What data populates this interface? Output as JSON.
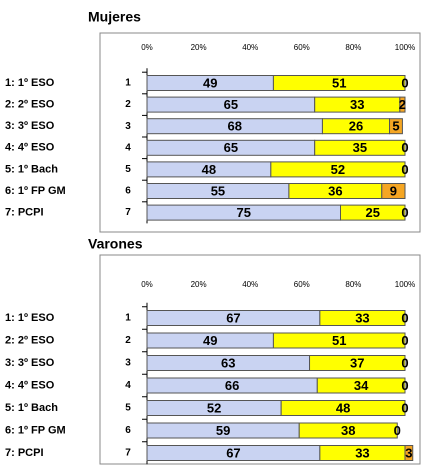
{
  "chart_data": [
    {
      "type": "bar",
      "orientation": "horizontal",
      "stacked": true,
      "title": "Mujeres",
      "categories": [
        "1",
        "2",
        "3",
        "4",
        "5",
        "6",
        "7"
      ],
      "side_labels": [
        "1: 1º ESO",
        "2: 2º ESO",
        "3: 3º ESO",
        "4: 4º ESO",
        "5: 1º Bach",
        "6: 1º FP GM",
        "7: PCPI"
      ],
      "series": [
        {
          "color": "#c9d3f2",
          "values": [
            49,
            65,
            68,
            65,
            48,
            55,
            75
          ]
        },
        {
          "color": "#ffff00",
          "values": [
            51,
            33,
            26,
            35,
            52,
            36,
            25
          ]
        },
        {
          "color": "#f5a623",
          "values": [
            0,
            2,
            5,
            0,
            0,
            9,
            0
          ]
        }
      ],
      "xlim": [
        0,
        100
      ],
      "xticks": [
        {
          "value": 0,
          "label": "0%"
        },
        {
          "value": 20,
          "label": "20%"
        },
        {
          "value": 40,
          "label": "40%"
        },
        {
          "value": 60,
          "label": "60%"
        },
        {
          "value": 80,
          "label": "80%"
        },
        {
          "value": 100,
          "label": "100%"
        }
      ]
    },
    {
      "type": "bar",
      "orientation": "horizontal",
      "stacked": true,
      "title": "Varones",
      "categories": [
        "1",
        "2",
        "3",
        "4",
        "5",
        "6",
        "7"
      ],
      "side_labels": [
        "1: 1º ESO",
        "2: 2º ESO",
        "3: 3º ESO",
        "4: 4º ESO",
        "5: 1º Bach",
        "6: 1º FP GM",
        "7: PCPI"
      ],
      "series": [
        {
          "color": "#c9d3f2",
          "values": [
            67,
            49,
            63,
            66,
            52,
            59,
            67
          ]
        },
        {
          "color": "#ffff00",
          "values": [
            33,
            51,
            37,
            34,
            48,
            38,
            33
          ]
        },
        {
          "color": "#f5a623",
          "values": [
            0,
            0,
            0,
            0,
            0,
            0,
            3
          ]
        }
      ],
      "xlim": [
        0,
        100
      ],
      "xticks": [
        {
          "value": 0,
          "label": "0%"
        },
        {
          "value": 20,
          "label": "20%"
        },
        {
          "value": 40,
          "label": "40%"
        },
        {
          "value": 60,
          "label": "60%"
        },
        {
          "value": 80,
          "label": "80%"
        },
        {
          "value": 100,
          "label": "100%"
        }
      ]
    }
  ]
}
